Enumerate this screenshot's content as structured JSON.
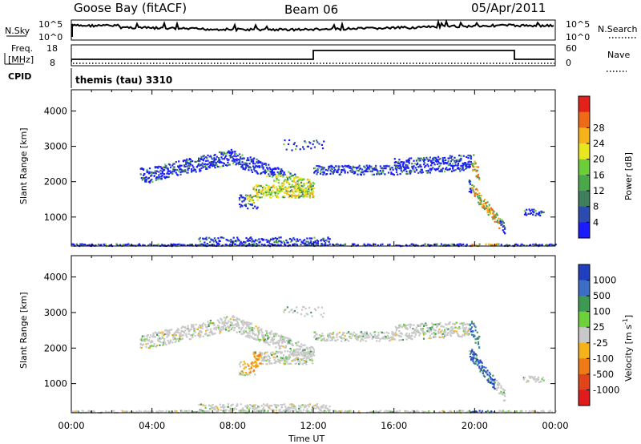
{
  "header": {
    "station": "Goose Bay (fitACF)",
    "beam": "Beam 06",
    "date": "05/Apr/2011"
  },
  "top_panels": {
    "nsky_label": "N.Sky",
    "nsearch_label": "N.Search",
    "noise_ticks": [
      "10^5",
      "10^0"
    ],
    "noise_right_ticks": [
      "10^5",
      "10^0"
    ],
    "freq_label_1": "Freq.",
    "freq_label_2": "[MHz]",
    "freq_ticks": [
      "18",
      "8"
    ],
    "nave_label": "Nave",
    "nave_ticks": [
      "60",
      "0"
    ],
    "cpid_label": "CPID",
    "cpid_value": "themis (tau) 3310"
  },
  "chart_data": [
    {
      "type": "heatmap",
      "name": "power",
      "ylabel": "Slant Range [km]",
      "ylim": [
        180,
        4600
      ],
      "yticks": [
        1000,
        2000,
        3000,
        4000
      ],
      "xlim_hours": [
        0,
        24
      ],
      "colorbar_label": "Power [dB]",
      "colorbar_ticks": [
        4,
        8,
        12,
        16,
        20,
        24,
        28
      ],
      "colorbar_colors": [
        "#1b1bff",
        "#2c4bb0",
        "#3f7f5e",
        "#4aa84a",
        "#6ccf3a",
        "#e9e620",
        "#f6b21a",
        "#ef6a16",
        "#e3201a"
      ]
    },
    {
      "type": "heatmap",
      "name": "velocity",
      "ylabel": "Slant Range [km]",
      "ylim": [
        180,
        4600
      ],
      "yticks": [
        1000,
        2000,
        3000,
        4000
      ],
      "xlim_hours": [
        0,
        24
      ],
      "xlabel": "Time UT",
      "xticks": [
        "00:00",
        "04:00",
        "08:00",
        "12:00",
        "16:00",
        "20:00",
        "00:00"
      ],
      "colorbar_label": "Velocity [m s",
      "colorbar_sup": "-1",
      "colorbar_label_end": "]",
      "colorbar_ticks": [
        "1000",
        "500",
        "100",
        "25",
        "-25",
        "-100",
        "-500",
        "-1000"
      ],
      "colorbar_colors": [
        "#1f3fbf",
        "#3c6ec8",
        "#3e9a52",
        "#6cd13a",
        "#c8c8c8",
        "#f6b21a",
        "#ef7a16",
        "#e04418",
        "#e01b1b"
      ]
    }
  ]
}
